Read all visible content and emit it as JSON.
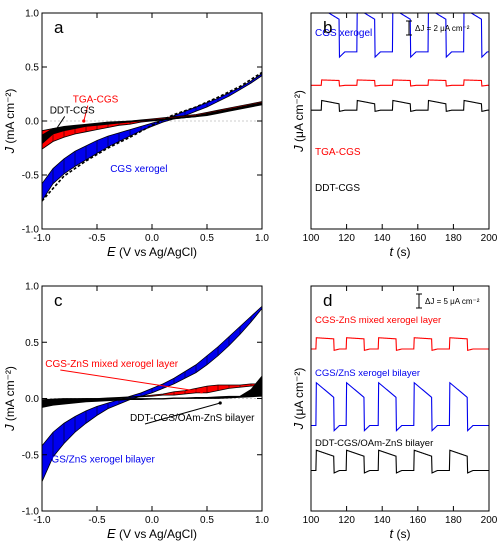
{
  "chart_data": [
    {
      "id": "a",
      "panel_label": "a",
      "type": "line",
      "xlabel_var": "E",
      "xlabel_rest": " (V vs Ag/AgCl)",
      "ylabel_var": "J",
      "ylabel_rest": " (mA cm⁻²)",
      "xlim": [
        -1.0,
        1.0
      ],
      "ylim": [
        -1.0,
        1.0
      ],
      "xticks": [
        -1.0,
        -0.5,
        0.0,
        0.5,
        1.0
      ],
      "yticks": [
        -1.0,
        -0.5,
        0.0,
        0.5,
        1.0
      ],
      "xtick_labels": [
        "-1.0",
        "-0.5",
        "0.0",
        "0.5",
        "1.0"
      ],
      "ytick_labels": [
        "-1.0",
        "-0.5",
        "0.0",
        "0.5",
        "1.0"
      ],
      "series": [
        {
          "name": "CGS xerogel",
          "color": "#0000ee",
          "x": [
            -1.0,
            -0.9,
            -0.8,
            -0.7,
            -0.6,
            -0.5,
            -0.4,
            -0.3,
            -0.2,
            -0.1,
            0.0,
            0.1,
            0.2,
            0.3,
            0.4,
            0.5,
            0.6,
            0.7,
            0.8,
            0.9,
            1.0
          ],
          "upper": [
            -0.58,
            -0.44,
            -0.35,
            -0.28,
            -0.23,
            -0.18,
            -0.14,
            -0.11,
            -0.08,
            -0.05,
            -0.02,
            0.01,
            0.05,
            0.09,
            0.13,
            0.17,
            0.21,
            0.26,
            0.31,
            0.37,
            0.44
          ],
          "lower": [
            -0.74,
            -0.58,
            -0.49,
            -0.42,
            -0.36,
            -0.3,
            -0.24,
            -0.19,
            -0.14,
            -0.09,
            -0.05,
            -0.01,
            0.02,
            0.05,
            0.09,
            0.13,
            0.18,
            0.23,
            0.29,
            0.35,
            0.42
          ]
        },
        {
          "name": "TGA-CGS",
          "color": "#ff0000",
          "x": [
            -1.0,
            -0.9,
            -0.8,
            -0.7,
            -0.6,
            -0.5,
            -0.4,
            -0.3,
            -0.2,
            -0.1,
            0.0,
            0.1,
            0.2,
            0.3,
            0.4,
            0.5,
            0.6,
            0.7,
            0.8,
            0.9,
            1.0
          ],
          "upper": [
            -0.09,
            -0.07,
            -0.06,
            -0.05,
            -0.04,
            -0.03,
            -0.02,
            -0.01,
            0.0,
            0.01,
            0.02,
            0.03,
            0.04,
            0.05,
            0.06,
            0.08,
            0.1,
            0.12,
            0.14,
            0.16,
            0.18
          ],
          "lower": [
            -0.26,
            -0.19,
            -0.15,
            -0.12,
            -0.1,
            -0.08,
            -0.06,
            -0.04,
            -0.03,
            -0.01,
            0.0,
            0.01,
            0.02,
            0.03,
            0.04,
            0.06,
            0.08,
            0.1,
            0.12,
            0.14,
            0.16
          ]
        },
        {
          "name": "DDT-CGS",
          "color": "#000000",
          "x": [
            -1.0,
            -0.9,
            -0.8,
            -0.7,
            -0.6,
            -0.5,
            -0.4,
            -0.3,
            -0.2,
            -0.1,
            0.0,
            0.1,
            0.2,
            0.3,
            0.4,
            0.5,
            0.6,
            0.7,
            0.8,
            0.9,
            1.0
          ],
          "upper": [
            -0.13,
            -0.07,
            -0.05,
            -0.04,
            -0.03,
            -0.02,
            -0.01,
            -0.005,
            0.0,
            0.005,
            0.01,
            0.02,
            0.03,
            0.04,
            0.05,
            0.07,
            0.09,
            0.11,
            0.13,
            0.15,
            0.17
          ],
          "lower": [
            -0.21,
            -0.12,
            -0.09,
            -0.07,
            -0.05,
            -0.04,
            -0.03,
            -0.02,
            -0.01,
            0.0,
            0.005,
            0.01,
            0.02,
            0.03,
            0.04,
            0.05,
            0.07,
            0.09,
            0.11,
            0.13,
            0.15
          ]
        }
      ],
      "dashed_envelope": {
        "color": "#000000",
        "x": [
          -1.0,
          -0.8,
          -0.6,
          -0.4,
          -0.2,
          0.0,
          0.2,
          0.4,
          0.6,
          0.8,
          1.0
        ],
        "y": [
          -0.74,
          -0.51,
          -0.37,
          -0.25,
          -0.15,
          -0.04,
          0.06,
          0.13,
          0.22,
          0.32,
          0.45
        ]
      },
      "annotations": [
        {
          "text": "TGA-CGS",
          "color": "#ff0000",
          "pos": [
            -0.72,
            0.17
          ],
          "arrow_to": [
            -0.62,
            0.0
          ]
        },
        {
          "text": "DDT-CGS",
          "color": "#000000",
          "pos": [
            -0.93,
            0.07
          ],
          "arrow_to": [
            -0.88,
            -0.09
          ]
        },
        {
          "text": "CGS xerogel",
          "color": "#0000ee",
          "pos": [
            -0.38,
            -0.47
          ],
          "arrow_to": null
        }
      ]
    },
    {
      "id": "b",
      "panel_label": "b",
      "type": "line",
      "xlabel_var": "t",
      "xlabel_rest": " (s)",
      "ylabel_var": "J",
      "ylabel_rest": " (μA cm⁻²)",
      "xlim": [
        100,
        200
      ],
      "ylim": [
        0,
        100
      ],
      "xticks": [
        100,
        120,
        140,
        160,
        180,
        200
      ],
      "xtick_labels": [
        "100",
        "120",
        "140",
        "160",
        "180",
        "200"
      ],
      "scale_bar": {
        "text": "ΔJ = 2 μA cm⁻²",
        "value_units": 2
      },
      "on_times": [
        106,
        126,
        146,
        166,
        186
      ],
      "period_on": 10,
      "series": [
        {
          "name": "CGS xerogel",
          "color": "#0000ee",
          "base": 18,
          "step": 20,
          "decay": 0.25,
          "spike": 3
        },
        {
          "name": "TGA-CGS",
          "color": "#ff0000",
          "base": 33.5,
          "step": 2.5,
          "decay": 0.1,
          "spike": 0
        },
        {
          "name": "DDT-CGS",
          "color": "#000000",
          "base": 45,
          "step": 4.5,
          "decay": 0.35,
          "spike": 0
        }
      ]
    },
    {
      "id": "c",
      "panel_label": "c",
      "type": "line",
      "xlabel_var": "E",
      "xlabel_rest": " (V vs Ag/AgCl)",
      "ylabel_var": "J",
      "ylabel_rest": " (mA cm⁻²)",
      "xlim": [
        -1.0,
        1.0
      ],
      "ylim": [
        -1.0,
        1.0
      ],
      "xticks": [
        -1.0,
        -0.5,
        0.0,
        0.5,
        1.0
      ],
      "yticks": [
        -1.0,
        -0.5,
        0.0,
        0.5,
        1.0
      ],
      "xtick_labels": [
        "-1.0",
        "-0.5",
        "0.0",
        "0.5",
        "1.0"
      ],
      "ytick_labels": [
        "-1.0",
        "-0.5",
        "0.0",
        "0.5",
        "1.0"
      ],
      "series": [
        {
          "name": "CGS/ZnS xerogel bilayer",
          "color": "#0000ee",
          "x": [
            -1.0,
            -0.9,
            -0.8,
            -0.7,
            -0.6,
            -0.5,
            -0.4,
            -0.3,
            -0.2,
            -0.1,
            0.0,
            0.1,
            0.2,
            0.3,
            0.4,
            0.5,
            0.6,
            0.7,
            0.8,
            0.9,
            1.0
          ],
          "upper": [
            -0.42,
            -0.3,
            -0.22,
            -0.16,
            -0.11,
            -0.07,
            -0.04,
            -0.01,
            0.02,
            0.05,
            0.09,
            0.13,
            0.18,
            0.24,
            0.3,
            0.38,
            0.46,
            0.55,
            0.64,
            0.73,
            0.82
          ],
          "lower": [
            -0.74,
            -0.52,
            -0.4,
            -0.3,
            -0.22,
            -0.15,
            -0.09,
            -0.05,
            -0.01,
            0.02,
            0.05,
            0.09,
            0.13,
            0.18,
            0.23,
            0.3,
            0.38,
            0.47,
            0.57,
            0.68,
            0.8
          ]
        },
        {
          "name": "CGS-ZnS mixed xerogel layer",
          "color": "#ff0000",
          "x": [
            -1.0,
            -0.9,
            -0.8,
            -0.7,
            -0.6,
            -0.5,
            -0.4,
            -0.3,
            -0.2,
            -0.1,
            0.0,
            0.1,
            0.2,
            0.3,
            0.4,
            0.5,
            0.6,
            0.7,
            0.8,
            0.9,
            1.0
          ],
          "upper": [
            -0.02,
            -0.015,
            -0.01,
            -0.005,
            0.0,
            0.0,
            0.005,
            0.01,
            0.015,
            0.02,
            0.03,
            0.04,
            0.06,
            0.07,
            0.09,
            0.11,
            0.12,
            0.12,
            0.12,
            0.13,
            0.13
          ],
          "lower": [
            -0.04,
            -0.03,
            -0.02,
            -0.015,
            -0.01,
            -0.005,
            0.0,
            0.005,
            0.01,
            0.015,
            0.02,
            0.03,
            0.03,
            0.04,
            0.05,
            0.05,
            0.07,
            0.09,
            0.1,
            0.11,
            0.12
          ]
        },
        {
          "name": "DDT-CGS/OAm-ZnS bilayer",
          "color": "#000000",
          "x": [
            -1.0,
            -0.9,
            -0.8,
            -0.7,
            -0.6,
            -0.5,
            -0.4,
            -0.3,
            -0.2,
            -0.1,
            0.0,
            0.1,
            0.2,
            0.3,
            0.4,
            0.5,
            0.6,
            0.7,
            0.8,
            0.9,
            1.0
          ],
          "upper": [
            -0.01,
            -0.005,
            0.0,
            0.0,
            0.0,
            0.0,
            0.0,
            0.0,
            0.0,
            0.0,
            0.0,
            0.0,
            0.005,
            0.005,
            0.01,
            0.01,
            0.015,
            0.02,
            0.02,
            0.08,
            0.2
          ],
          "lower": [
            -0.08,
            -0.06,
            -0.05,
            -0.04,
            -0.03,
            -0.025,
            -0.02,
            -0.015,
            -0.01,
            -0.01,
            -0.005,
            -0.005,
            0.0,
            0.0,
            0.0,
            0.0,
            0.0,
            0.005,
            0.01,
            0.015,
            0.02
          ]
        }
      ],
      "annotations": [
        {
          "text": "CGS-ZnS mixed xerogel layer",
          "color": "#ff0000",
          "pos": [
            -0.97,
            0.28
          ],
          "arrow_to": [
            0.45,
            0.06
          ]
        },
        {
          "text": "DDT-CGS/OAm-ZnS bilayer",
          "color": "#000000",
          "pos": [
            -0.2,
            -0.2
          ],
          "arrow_to": [
            0.62,
            -0.04
          ]
        },
        {
          "text": "CGS/ZnS xerogel bilayer",
          "color": "#0000ee",
          "pos": [
            -0.98,
            -0.57
          ],
          "arrow_to": null
        }
      ]
    },
    {
      "id": "d",
      "panel_label": "d",
      "type": "line",
      "xlabel_var": "t",
      "xlabel_rest": " (s)",
      "ylabel_var": "J",
      "ylabel_rest": " (μA cm⁻²)",
      "xlim": [
        100,
        200
      ],
      "ylim": [
        0,
        100
      ],
      "xticks": [
        100,
        120,
        140,
        160,
        180,
        200
      ],
      "xtick_labels": [
        "100",
        "120",
        "140",
        "160",
        "180",
        "200"
      ],
      "scale_bar": {
        "text": "ΔJ = 5 μA cm⁻²",
        "value_units": 5
      },
      "on_times": [
        103,
        120,
        138,
        158,
        178
      ],
      "period_on": 10,
      "series": [
        {
          "name": "CGS-ZnS mixed xerogel layer",
          "color": "#ff0000",
          "base": 28,
          "step": 5,
          "decay": 0.1,
          "spike": 0
        },
        {
          "name": "CGS/ZnS xerogel bilayer",
          "color": "#0000ee",
          "base": 62,
          "step": 19,
          "decay": 0.35,
          "spike": 0
        },
        {
          "name": "DDT-CGS/OAm-ZnS bilayer",
          "color": "#000000",
          "base": 82,
          "step": 9,
          "decay": 0.3,
          "spike": 0
        }
      ]
    }
  ],
  "series_labels": {
    "a": {
      "cgs": "CGS xerogel",
      "tga": "TGA-CGS",
      "ddt": "DDT-CGS"
    },
    "b": {
      "cgs": "CGS xerogel",
      "tga": "TGA-CGS",
      "ddt": "DDT-CGS"
    },
    "c": {
      "mixed": "CGS-ZnS mixed xerogel layer",
      "ddt": "DDT-CGS/OAm-ZnS bilayer",
      "bilayer": "CGS/ZnS xerogel bilayer"
    },
    "d": {
      "mixed": "CGS-ZnS mixed xerogel layer",
      "bilayer": "CGS/ZnS xerogel bilayer",
      "ddt": "DDT-CGS/OAm-ZnS bilayer"
    }
  }
}
